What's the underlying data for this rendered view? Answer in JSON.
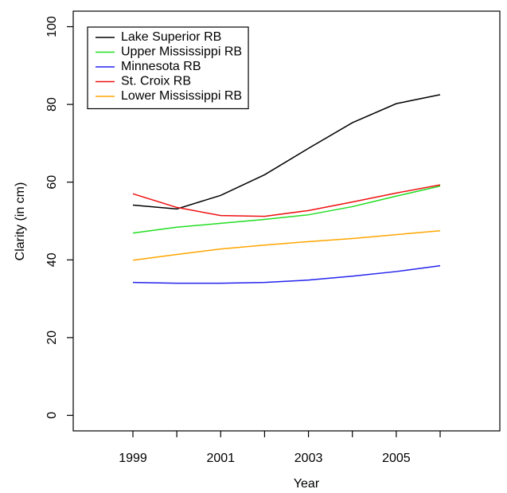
{
  "chart_data": {
    "type": "line",
    "x_label": "Year",
    "y_label": "Clarity (in cm)",
    "x": [
      1999,
      2000,
      2001,
      2002,
      2003,
      2004,
      2005,
      2006
    ],
    "series": [
      {
        "name": "Lake Superior RB",
        "color": "#000000",
        "values": [
          54.1,
          53.1,
          56.6,
          61.9,
          68.7,
          75.3,
          80.2,
          82.5
        ]
      },
      {
        "name": "Upper Mississippi RB",
        "color": "#22dd22",
        "values": [
          46.9,
          48.4,
          49.4,
          50.4,
          51.6,
          53.7,
          56.4,
          59.0
        ]
      },
      {
        "name": "Minnesota RB",
        "color": "#2222ee",
        "values": [
          34.2,
          34.0,
          34.0,
          34.2,
          34.8,
          35.8,
          37.0,
          38.5
        ]
      },
      {
        "name": "St. Croix RB",
        "color": "#ee1111",
        "values": [
          57.0,
          53.5,
          51.4,
          51.2,
          52.7,
          54.9,
          57.2,
          59.3
        ]
      },
      {
        "name": "Lower Mississippi RB",
        "color": "#ffa500",
        "values": [
          39.9,
          41.4,
          42.8,
          43.8,
          44.7,
          45.5,
          46.5,
          47.5
        ]
      }
    ],
    "xlim": [
      1997.64,
      2007.36
    ],
    "xticks": [
      1999,
      2001,
      2003,
      2005
    ],
    "xminor_ticks": [
      2000,
      2002,
      2004,
      2006
    ],
    "ylim": [
      -4,
      104
    ],
    "yticks": [
      0,
      20,
      40,
      60,
      80,
      100
    ],
    "legend": "top-left"
  }
}
